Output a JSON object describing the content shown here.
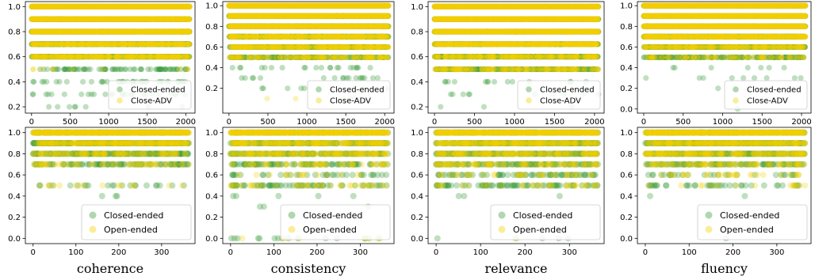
{
  "colors": {
    "closed": "#3a9a3a",
    "adv": "#f5d000",
    "open": "#f5d000"
  },
  "chart_data": [
    {
      "type": "scatter",
      "row": 0,
      "col": 0,
      "xlim": [
        -80,
        2120
      ],
      "ylim": [
        0.15,
        1.04
      ],
      "xticks": [
        0,
        500,
        1000,
        1500,
        2000
      ],
      "yticks": [
        0.2,
        0.4,
        0.6,
        0.8,
        1.0
      ],
      "y_levels": [
        0.2,
        0.3,
        0.4,
        0.5,
        0.6,
        0.7,
        0.8,
        0.9,
        1.0
      ],
      "x_count": 2050,
      "series": [
        {
          "name": "Closed-ended",
          "color_key": "closed",
          "density": [
            0.004,
            0.01,
            0.02,
            0.05,
            0.22,
            0.45,
            0.55,
            0.45,
            0.25
          ]
        },
        {
          "name": "Close-ADV",
          "color_key": "adv",
          "density": [
            0.0,
            0.0,
            0.0,
            0.01,
            0.15,
            0.18,
            0.55,
            0.5,
            0.9
          ]
        }
      ],
      "legend": {
        "entries": [
          "Closed-ended",
          "Close-ADV"
        ],
        "loc": "lower right",
        "size": "small"
      },
      "xlabel": ""
    },
    {
      "type": "scatter",
      "row": 0,
      "col": 1,
      "xlim": [
        -80,
        2120
      ],
      "ylim": [
        -0.04,
        1.04
      ],
      "xticks": [
        0,
        500,
        1000,
        1500,
        2000
      ],
      "yticks": [
        0.2,
        0.4,
        0.6,
        0.8,
        1.0
      ],
      "y_levels": [
        0.0,
        0.1,
        0.2,
        0.3,
        0.4,
        0.5,
        0.6,
        0.7,
        0.8,
        0.9,
        1.0
      ],
      "x_count": 2050,
      "series": [
        {
          "name": "Closed-ended",
          "color_key": "closed",
          "density": [
            0.0,
            0.001,
            0.003,
            0.006,
            0.008,
            0.1,
            0.2,
            0.3,
            0.55,
            0.5,
            0.25
          ]
        },
        {
          "name": "Close-ADV",
          "color_key": "adv",
          "density": [
            0.0,
            0.002,
            0.0,
            0.0,
            0.0,
            0.08,
            0.15,
            0.2,
            0.35,
            0.45,
            0.95
          ]
        }
      ],
      "legend": {
        "entries": [
          "Closed-ended",
          "Close-ADV"
        ],
        "loc": "lower right",
        "size": "small"
      },
      "xlabel": ""
    },
    {
      "type": "scatter",
      "row": 0,
      "col": 2,
      "xlim": [
        -80,
        2120
      ],
      "ylim": [
        0.15,
        1.04
      ],
      "xticks": [
        0,
        500,
        1000,
        1500,
        2000
      ],
      "yticks": [
        0.2,
        0.4,
        0.6,
        0.8,
        1.0
      ],
      "y_levels": [
        0.2,
        0.3,
        0.4,
        0.5,
        0.6,
        0.7,
        0.8,
        0.9,
        1.0
      ],
      "x_count": 2050,
      "series": [
        {
          "name": "Closed-ended",
          "color_key": "closed",
          "density": [
            0.002,
            0.004,
            0.01,
            0.14,
            0.22,
            0.35,
            0.45,
            0.4,
            0.2
          ]
        },
        {
          "name": "Close-ADV",
          "color_key": "adv",
          "density": [
            0.0,
            0.0,
            0.003,
            0.08,
            0.12,
            0.25,
            0.45,
            0.6,
            0.95
          ]
        }
      ],
      "legend": {
        "entries": [
          "Closed-ended",
          "Close-ADV"
        ],
        "loc": "lower right",
        "size": "small"
      },
      "xlabel": ""
    },
    {
      "type": "scatter",
      "row": 0,
      "col": 3,
      "xlim": [
        -80,
        2120
      ],
      "ylim": [
        -0.04,
        1.04
      ],
      "xticks": [
        0,
        500,
        1000,
        1500,
        2000
      ],
      "yticks": [
        0.0,
        0.2,
        0.4,
        0.6,
        0.8,
        1.0
      ],
      "y_levels": [
        0.0,
        0.2,
        0.3,
        0.4,
        0.5,
        0.6,
        0.7,
        0.8,
        0.9,
        1.0
      ],
      "x_count": 2050,
      "series": [
        {
          "name": "Closed-ended",
          "color_key": "closed",
          "density": [
            0.001,
            0.002,
            0.003,
            0.005,
            0.1,
            0.2,
            0.4,
            0.45,
            0.45,
            0.3
          ]
        },
        {
          "name": "Close-ADV",
          "color_key": "adv",
          "density": [
            0.0,
            0.0,
            0.0,
            0.0,
            0.04,
            0.12,
            0.3,
            0.5,
            0.6,
            0.95
          ]
        }
      ],
      "legend": {
        "entries": [
          "Closed-ended",
          "Close-ADV"
        ],
        "loc": "lower right",
        "size": "small"
      },
      "xlabel": ""
    },
    {
      "type": "scatter",
      "row": 1,
      "col": 0,
      "xlim": [
        -18,
        378
      ],
      "ylim": [
        -0.05,
        1.05
      ],
      "xticks": [
        0,
        100,
        200,
        300
      ],
      "yticks": [
        0.0,
        0.2,
        0.4,
        0.6,
        0.8,
        1.0
      ],
      "y_levels": [
        0.0,
        0.4,
        0.5,
        0.7,
        0.8,
        0.9,
        1.0
      ],
      "x_count": 365,
      "series": [
        {
          "name": "Closed-ended",
          "color_key": "closed",
          "density": [
            0.005,
            0.01,
            0.06,
            0.25,
            0.55,
            0.6,
            0.5
          ]
        },
        {
          "name": "Open-ended",
          "color_key": "open",
          "density": [
            0.003,
            0.0,
            0.03,
            0.15,
            0.3,
            0.55,
            0.95
          ]
        }
      ],
      "legend": {
        "entries": [
          "Closed-ended",
          "Open-ended"
        ],
        "loc": "lower right",
        "size": "large"
      },
      "xlabel": "coherence"
    },
    {
      "type": "scatter",
      "row": 1,
      "col": 1,
      "xlim": [
        -18,
        378
      ],
      "ylim": [
        -0.05,
        1.05
      ],
      "xticks": [
        0,
        100,
        200,
        300
      ],
      "yticks": [
        0.0,
        0.2,
        0.4,
        0.6,
        0.8,
        1.0
      ],
      "y_levels": [
        0.0,
        0.2,
        0.3,
        0.4,
        0.5,
        0.6,
        0.7,
        0.8,
        0.9,
        1.0
      ],
      "x_count": 365,
      "series": [
        {
          "name": "Closed-ended",
          "color_key": "closed",
          "density": [
            0.04,
            0.003,
            0.005,
            0.02,
            0.18,
            0.1,
            0.25,
            0.45,
            0.45,
            0.35
          ]
        },
        {
          "name": "Open-ended",
          "color_key": "open",
          "density": [
            0.02,
            0.003,
            0.0,
            0.0,
            0.08,
            0.06,
            0.15,
            0.35,
            0.45,
            0.95
          ]
        }
      ],
      "legend": {
        "entries": [
          "Closed-ended",
          "Open-ended"
        ],
        "loc": "lower right",
        "size": "large"
      },
      "xlabel": "consistency"
    },
    {
      "type": "scatter",
      "row": 1,
      "col": 2,
      "xlim": [
        -18,
        378
      ],
      "ylim": [
        -0.05,
        1.05
      ],
      "xticks": [
        0,
        100,
        200,
        300
      ],
      "yticks": [
        0.0,
        0.2,
        0.4,
        0.6,
        0.8,
        1.0
      ],
      "y_levels": [
        0.0,
        0.4,
        0.5,
        0.6,
        0.7,
        0.8,
        0.9,
        1.0
      ],
      "x_count": 365,
      "series": [
        {
          "name": "Closed-ended",
          "color_key": "closed",
          "density": [
            0.012,
            0.005,
            0.2,
            0.18,
            0.3,
            0.5,
            0.55,
            0.45
          ]
        },
        {
          "name": "Open-ended",
          "color_key": "open",
          "density": [
            0.004,
            0.0,
            0.08,
            0.08,
            0.2,
            0.4,
            0.55,
            0.95
          ]
        }
      ],
      "legend": {
        "entries": [
          "Closed-ended",
          "Open-ended"
        ],
        "loc": "lower right",
        "size": "large"
      },
      "xlabel": "relevance"
    },
    {
      "type": "scatter",
      "row": 1,
      "col": 3,
      "xlim": [
        -18,
        378
      ],
      "ylim": [
        -0.05,
        1.05
      ],
      "xticks": [
        0,
        100,
        200,
        300
      ],
      "yticks": [
        0.0,
        0.2,
        0.4,
        0.6,
        0.8,
        1.0
      ],
      "y_levels": [
        0.0,
        0.4,
        0.5,
        0.6,
        0.7,
        0.8,
        0.9,
        1.0
      ],
      "x_count": 365,
      "series": [
        {
          "name": "Closed-ended",
          "color_key": "closed",
          "density": [
            0.003,
            0.004,
            0.1,
            0.1,
            0.3,
            0.55,
            0.6,
            0.45
          ]
        },
        {
          "name": "Open-ended",
          "color_key": "open",
          "density": [
            0.0,
            0.0,
            0.04,
            0.05,
            0.2,
            0.45,
            0.55,
            0.95
          ]
        }
      ],
      "legend": {
        "entries": [
          "Closed-ended",
          "Open-ended"
        ],
        "loc": "lower right",
        "size": "large"
      },
      "xlabel": "fluency"
    }
  ]
}
